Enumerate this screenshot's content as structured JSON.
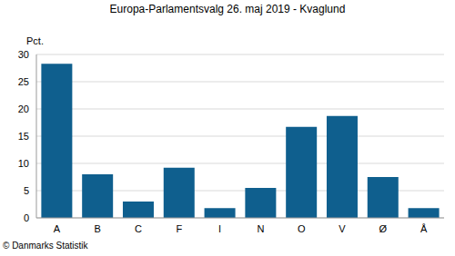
{
  "chart_data": {
    "type": "bar",
    "title": "Europa-Parlamentsvalg 26. maj 2019 - Kvaglund",
    "y_label": "Pct.",
    "source": "© Danmarks Statistik",
    "categories": [
      "A",
      "B",
      "C",
      "F",
      "I",
      "N",
      "O",
      "V",
      "Ø",
      "Å"
    ],
    "values": [
      28.3,
      8.0,
      3.0,
      9.2,
      1.8,
      5.5,
      16.7,
      18.7,
      7.5,
      1.8
    ],
    "color": "#0f5f8e",
    "ylim": [
      0,
      30
    ],
    "yticks": [
      0,
      5,
      10,
      15,
      20,
      25,
      30
    ],
    "grid": true
  }
}
